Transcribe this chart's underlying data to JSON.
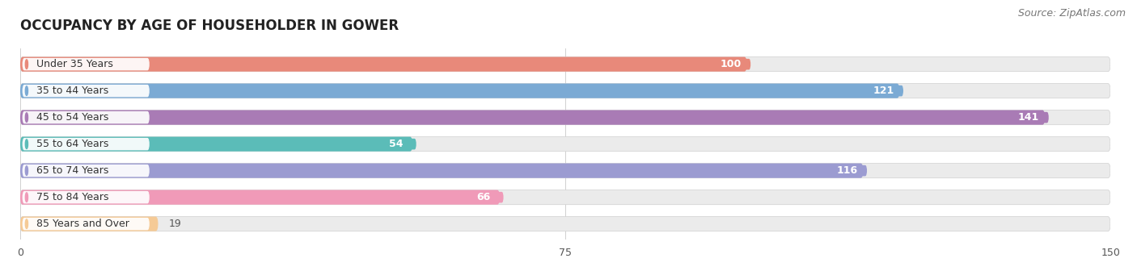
{
  "title": "OCCUPANCY BY AGE OF HOUSEHOLDER IN GOWER",
  "source": "Source: ZipAtlas.com",
  "categories": [
    "Under 35 Years",
    "35 to 44 Years",
    "45 to 54 Years",
    "55 to 64 Years",
    "65 to 74 Years",
    "75 to 84 Years",
    "85 Years and Over"
  ],
  "values": [
    100,
    121,
    141,
    54,
    116,
    66,
    19
  ],
  "bar_colors": [
    "#E8897A",
    "#7BAAD4",
    "#A97BB5",
    "#5BBCB8",
    "#9B9BD1",
    "#F09AB8",
    "#F5CA96"
  ],
  "bar_bg_colors": [
    "#EAEAEA",
    "#EAEAEA",
    "#EAEAEA",
    "#EAEAEA",
    "#EAEAEA",
    "#EAEAEA",
    "#EAEAEA"
  ],
  "dot_colors": [
    "#E8897A",
    "#7BAAD4",
    "#A97BB5",
    "#5BBCB8",
    "#9B9BD1",
    "#F09AB8",
    "#F5CA96"
  ],
  "xlim": [
    0,
    150
  ],
  "xticks": [
    0,
    75,
    150
  ],
  "title_fontsize": 12,
  "source_fontsize": 9,
  "bar_label_fontsize": 9,
  "category_fontsize": 9,
  "bar_height": 0.55,
  "bar_gap": 1.0
}
